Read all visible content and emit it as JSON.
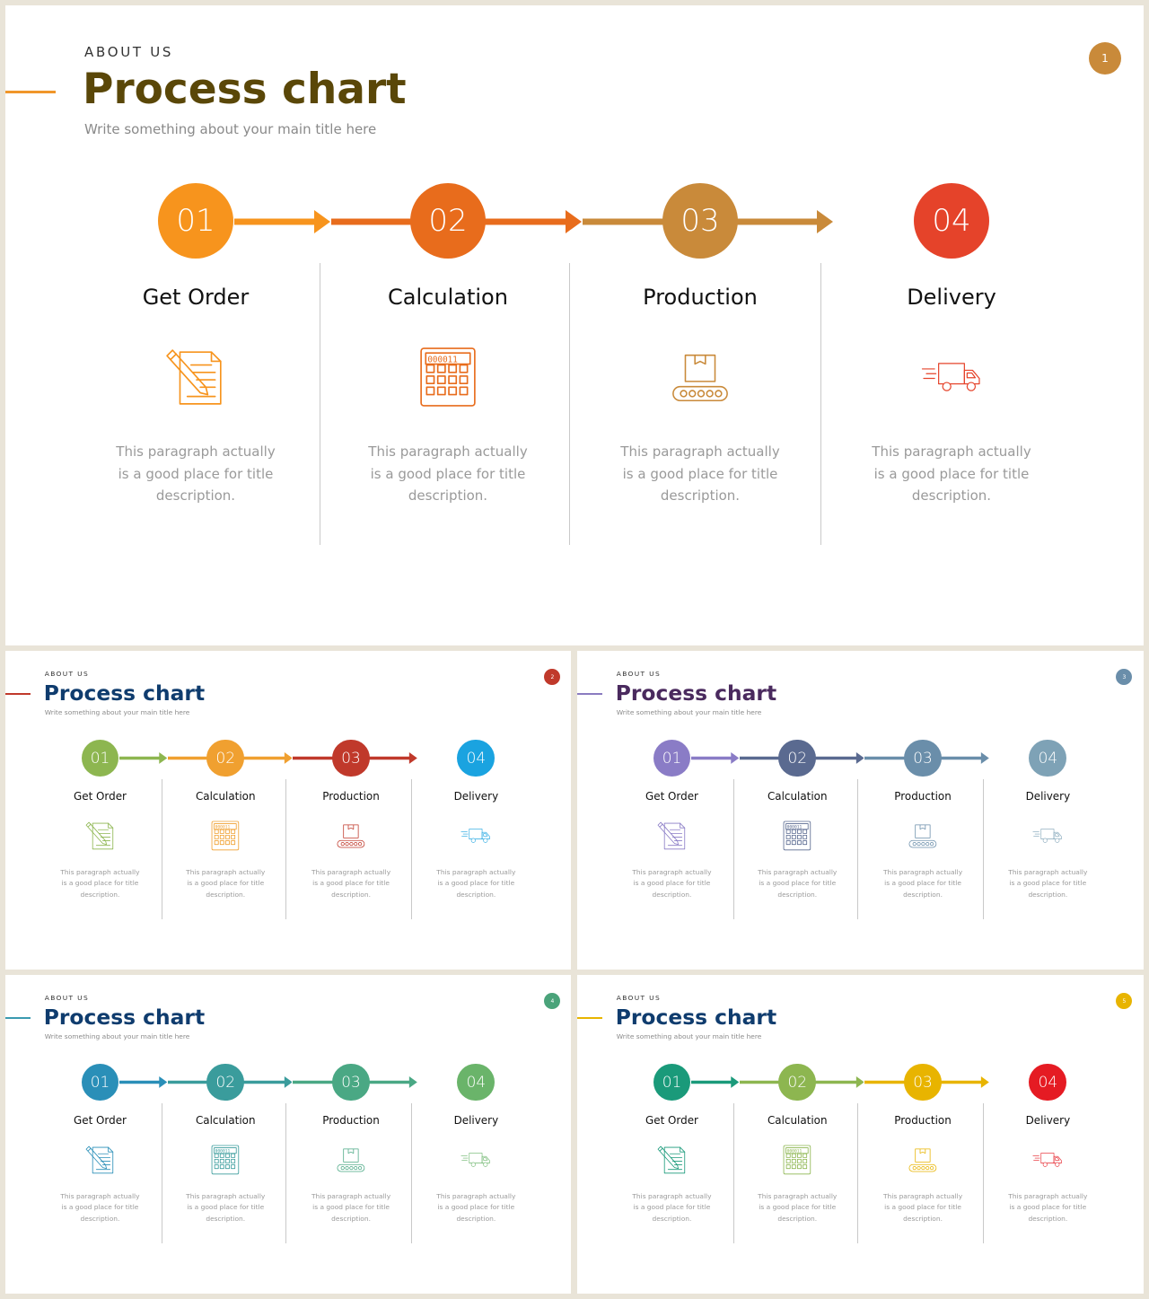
{
  "slides": [
    {
      "eyebrow": "ABOUT US",
      "title": "Process chart",
      "subtitle": "Write something about your main title here",
      "page": "1",
      "title_color": "#5a4708",
      "badge_color": "#c98a3a",
      "accent_color": "#f0962a",
      "steps": [
        {
          "number": "01",
          "title": "Get Order",
          "icon": "document-pencil-icon",
          "description": "This paragraph actually is a good place for title description.",
          "color": "#f7941d"
        },
        {
          "number": "02",
          "title": "Calculation",
          "icon": "calculator-icon",
          "description": "This paragraph actually is a good place for title description.",
          "color": "#e86c1c"
        },
        {
          "number": "03",
          "title": "Production",
          "icon": "conveyor-box-icon",
          "description": "This paragraph actually is a good place for title description.",
          "color": "#c98a3a"
        },
        {
          "number": "04",
          "title": "Delivery",
          "icon": "delivery-truck-icon",
          "description": "This paragraph actually is a good place for title description.",
          "color": "#e5432a"
        }
      ]
    },
    {
      "eyebrow": "ABOUT US",
      "title": "Process chart",
      "subtitle": "Write something about your main title here",
      "page": "2",
      "title_color": "#0f3c6e",
      "badge_color": "#c0392b",
      "accent_color": "#c0392b",
      "steps": [
        {
          "number": "01",
          "title": "Get Order",
          "icon": "document-pencil-icon",
          "description": "This paragraph actually is a good place for title description.",
          "color": "#8db650"
        },
        {
          "number": "02",
          "title": "Calculation",
          "icon": "calculator-icon",
          "description": "This paragraph actually is a good place for title description.",
          "color": "#f0a030"
        },
        {
          "number": "03",
          "title": "Production",
          "icon": "conveyor-box-icon",
          "description": "This paragraph actually is a good place for title description.",
          "color": "#c0392b"
        },
        {
          "number": "04",
          "title": "Delivery",
          "icon": "delivery-truck-icon",
          "description": "This paragraph actually is a good place for title description.",
          "color": "#1aa3e0"
        }
      ]
    },
    {
      "eyebrow": "ABOUT US",
      "title": "Process chart",
      "subtitle": "Write something about your main title here",
      "page": "3",
      "title_color": "#4a2a5e",
      "badge_color": "#6a8eaa",
      "accent_color": "#8a7cc0",
      "steps": [
        {
          "number": "01",
          "title": "Get Order",
          "icon": "document-pencil-icon",
          "description": "This paragraph actually is a good place for title description.",
          "color": "#8a7cc6"
        },
        {
          "number": "02",
          "title": "Calculation",
          "icon": "calculator-icon",
          "description": "This paragraph actually is a good place for title description.",
          "color": "#5a6a90"
        },
        {
          "number": "03",
          "title": "Production",
          "icon": "conveyor-box-icon",
          "description": "This paragraph actually is a good place for title description.",
          "color": "#6a8eaa"
        },
        {
          "number": "04",
          "title": "Delivery",
          "icon": "delivery-truck-icon",
          "description": "This paragraph actually is a good place for title description.",
          "color": "#7ea2b6"
        }
      ]
    },
    {
      "eyebrow": "ABOUT US",
      "title": "Process chart",
      "subtitle": "Write something about your main title here",
      "page": "4",
      "title_color": "#0f3c6e",
      "badge_color": "#4aa37a",
      "accent_color": "#3a9ab0",
      "steps": [
        {
          "number": "01",
          "title": "Get Order",
          "icon": "document-pencil-icon",
          "description": "This paragraph actually is a good place for title description.",
          "color": "#2a8fb8"
        },
        {
          "number": "02",
          "title": "Calculation",
          "icon": "calculator-icon",
          "description": "This paragraph actually is a good place for title description.",
          "color": "#3a9c9c"
        },
        {
          "number": "03",
          "title": "Production",
          "icon": "conveyor-box-icon",
          "description": "This paragraph actually is a good place for title description.",
          "color": "#4aa884"
        },
        {
          "number": "04",
          "title": "Delivery",
          "icon": "delivery-truck-icon",
          "description": "This paragraph actually is a good place for title description.",
          "color": "#6ab46a"
        }
      ]
    },
    {
      "eyebrow": "ABOUT US",
      "title": "Process chart",
      "subtitle": "Write something about your main title here",
      "page": "5",
      "title_color": "#0f3c6e",
      "badge_color": "#e8b400",
      "accent_color": "#e8b400",
      "steps": [
        {
          "number": "01",
          "title": "Get Order",
          "icon": "document-pencil-icon",
          "description": "This paragraph actually is a good place for title description.",
          "color": "#1a9a7a"
        },
        {
          "number": "02",
          "title": "Calculation",
          "icon": "calculator-icon",
          "description": "This paragraph actually is a good place for title description.",
          "color": "#8db650"
        },
        {
          "number": "03",
          "title": "Production",
          "icon": "conveyor-box-icon",
          "description": "This paragraph actually is a good place for title description.",
          "color": "#e8b400"
        },
        {
          "number": "04",
          "title": "Delivery",
          "icon": "delivery-truck-icon",
          "description": "This paragraph actually is a good place for title description.",
          "color": "#e51b23"
        }
      ]
    }
  ]
}
